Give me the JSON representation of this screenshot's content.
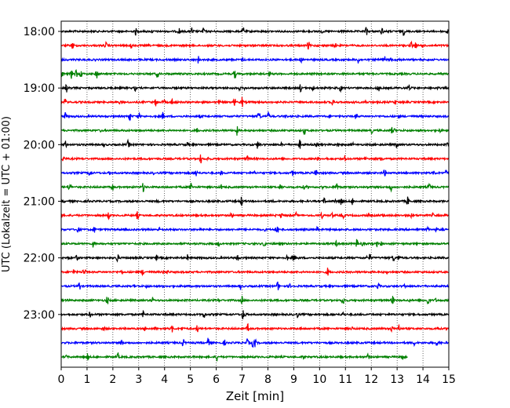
{
  "chart_data": {
    "type": "line",
    "xlabel": "Zeit  [min]",
    "ylabel": "UTC (Lokalzeit = UTC + 01:00)",
    "xlim": [
      0,
      15
    ],
    "x_ticks": [
      "0",
      "1",
      "2",
      "3",
      "4",
      "5",
      "6",
      "7",
      "8",
      "9",
      "10",
      "11",
      "12",
      "13",
      "14",
      "15"
    ],
    "y_tick_labels": [
      "18:00",
      "19:00",
      "20:00",
      "21:00",
      "22:00",
      "23:00"
    ],
    "grid": "vertical-dotted",
    "colors": [
      "#000000",
      "#ff0000",
      "#0000ff",
      "#008000"
    ],
    "rows": [
      {
        "start": "18:00",
        "color": "#000000",
        "end_min": 15
      },
      {
        "start": "18:15",
        "color": "#ff0000",
        "end_min": 15
      },
      {
        "start": "18:30",
        "color": "#0000ff",
        "end_min": 15
      },
      {
        "start": "18:45",
        "color": "#008000",
        "end_min": 15
      },
      {
        "start": "19:00",
        "color": "#000000",
        "end_min": 15
      },
      {
        "start": "19:15",
        "color": "#ff0000",
        "end_min": 15
      },
      {
        "start": "19:30",
        "color": "#0000ff",
        "end_min": 15
      },
      {
        "start": "19:45",
        "color": "#008000",
        "end_min": 15
      },
      {
        "start": "20:00",
        "color": "#000000",
        "end_min": 15
      },
      {
        "start": "20:15",
        "color": "#ff0000",
        "end_min": 15
      },
      {
        "start": "20:30",
        "color": "#0000ff",
        "end_min": 15
      },
      {
        "start": "20:45",
        "color": "#008000",
        "end_min": 15
      },
      {
        "start": "21:00",
        "color": "#000000",
        "end_min": 15
      },
      {
        "start": "21:15",
        "color": "#ff0000",
        "end_min": 15
      },
      {
        "start": "21:30",
        "color": "#0000ff",
        "end_min": 15
      },
      {
        "start": "21:45",
        "color": "#008000",
        "end_min": 15
      },
      {
        "start": "22:00",
        "color": "#000000",
        "end_min": 15
      },
      {
        "start": "22:15",
        "color": "#ff0000",
        "end_min": 15
      },
      {
        "start": "22:30",
        "color": "#0000ff",
        "end_min": 15
      },
      {
        "start": "22:45",
        "color": "#008000",
        "end_min": 15
      },
      {
        "start": "23:00",
        "color": "#000000",
        "end_min": 15
      },
      {
        "start": "23:15",
        "color": "#ff0000",
        "end_min": 15
      },
      {
        "start": "23:30",
        "color": "#0000ff",
        "end_min": 15
      },
      {
        "start": "23:45",
        "color": "#008000",
        "end_min": 13.4
      }
    ]
  }
}
